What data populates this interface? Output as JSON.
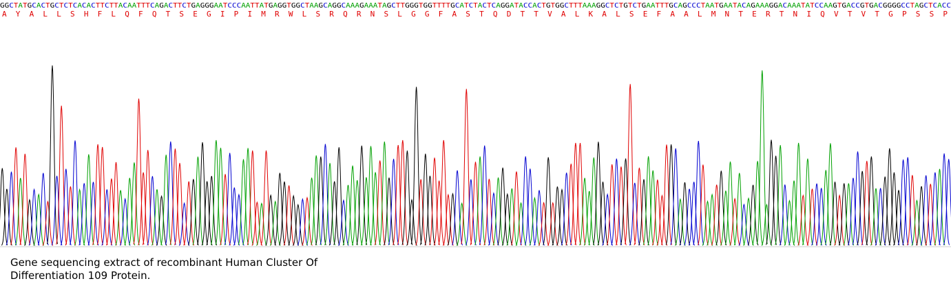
{
  "sequence": "GGCTATGCACTGCTCTCACACTTCTTACAATTTCAGACTTCTGAGGGAATCCCAATTATGAGGTGGCTAAGCAGGCAAAGAAATAGCTTGGGTGGTTTTGCATCTACTCAGGATACCACTGTGGCTTTAAAGGCTCTGTCTGAATTTGCAGCCCTAATGAATACAGAAAGGACAAATATCCAAGTGACCGTGACGGGGCCTAGCTCACC",
  "amino_acids": "A Y A L L S H F L Q F Q T S E G I P I M R W L S R Q R N S L G G F A S T Q D T T V A L K A L S E F A A L M N T E R T N I Q V T V T G P S S P",
  "caption": [
    "Gene sequencing extract of recombinant Human Cluster Of",
    "Differentiation 109 Protein."
  ]
}
